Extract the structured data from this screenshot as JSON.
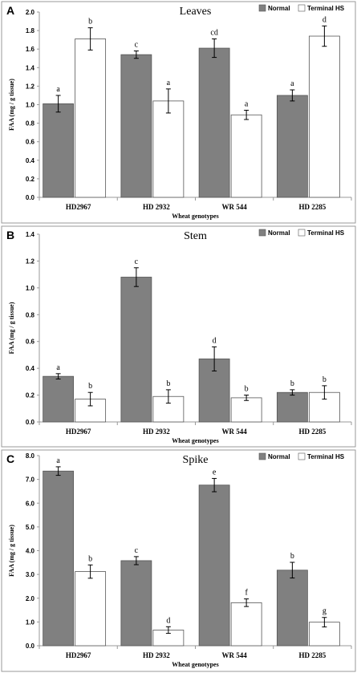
{
  "colors": {
    "normal": "#808080",
    "terminal_hs": "#ffffff",
    "outline": "#555555",
    "axis": "#999999",
    "frame": "#9a9a9a"
  },
  "chart_data": [
    {
      "type": "bar",
      "panel": "A",
      "title": "Leaves",
      "xlabel": "Wheat genotypes",
      "ylabel": "FAA (mg / g tissue)",
      "categories": [
        "HD2967",
        "HD 2932",
        "WR 544",
        "HD 2285"
      ],
      "ylim": [
        0,
        2.0
      ],
      "yticks": [
        "0.0",
        "0.2",
        "0.4",
        "0.6",
        "0.8",
        "1.0",
        "1.2",
        "1.4",
        "1.6",
        "1.8",
        "2.0"
      ],
      "legend_position": "top-right",
      "series": [
        {
          "name": "Normal",
          "values": [
            1.01,
            1.54,
            1.61,
            1.1
          ],
          "errors": [
            0.09,
            0.04,
            0.1,
            0.06
          ],
          "labels": [
            "a",
            "c",
            "cd",
            "a"
          ]
        },
        {
          "name": "Terminal HS",
          "values": [
            1.71,
            1.04,
            0.89,
            1.74
          ],
          "errors": [
            0.12,
            0.13,
            0.05,
            0.11
          ],
          "labels": [
            "b",
            "a",
            "a",
            "d"
          ]
        }
      ]
    },
    {
      "type": "bar",
      "panel": "B",
      "title": "Stem",
      "xlabel": "Wheat genotypes",
      "ylabel": "FAA (mg / g tissue)",
      "categories": [
        "HD2967",
        "HD 2932",
        "WR 544",
        "HD 2285"
      ],
      "ylim": [
        0,
        1.4
      ],
      "yticks": [
        "0.0",
        "0.2",
        "0.4",
        "0.6",
        "0.8",
        "1.0",
        "1.2",
        "1.4"
      ],
      "legend_position": "top-right",
      "series": [
        {
          "name": "Normal",
          "values": [
            0.34,
            1.08,
            0.47,
            0.22
          ],
          "errors": [
            0.02,
            0.07,
            0.09,
            0.02
          ],
          "labels": [
            "a",
            "c",
            "d",
            "b"
          ]
        },
        {
          "name": "Terminal HS",
          "values": [
            0.17,
            0.19,
            0.18,
            0.22
          ],
          "errors": [
            0.05,
            0.05,
            0.02,
            0.05
          ],
          "labels": [
            "b",
            "b",
            "b",
            "b"
          ]
        }
      ]
    },
    {
      "type": "bar",
      "panel": "C",
      "title": "Spike",
      "xlabel": "Wheat genotypes",
      "ylabel": "FAA (mg / g tissue)",
      "categories": [
        "HD2967",
        "HD 2932",
        "WR 544",
        "HD 2285"
      ],
      "ylim": [
        0,
        8.0
      ],
      "yticks": [
        "0.0",
        "1.0",
        "2.0",
        "3.0",
        "4.0",
        "5.0",
        "6.0",
        "7.0",
        "8.0"
      ],
      "legend_position": "top-right",
      "series": [
        {
          "name": "Normal",
          "values": [
            7.35,
            3.58,
            6.76,
            3.18
          ],
          "errors": [
            0.18,
            0.17,
            0.28,
            0.33
          ],
          "labels": [
            "a",
            "c",
            "e",
            "b"
          ]
        },
        {
          "name": "Terminal HS",
          "values": [
            3.12,
            0.66,
            1.81,
            0.99
          ],
          "errors": [
            0.28,
            0.14,
            0.16,
            0.2
          ],
          "labels": [
            "b",
            "d",
            "f",
            "g"
          ]
        }
      ]
    }
  ]
}
